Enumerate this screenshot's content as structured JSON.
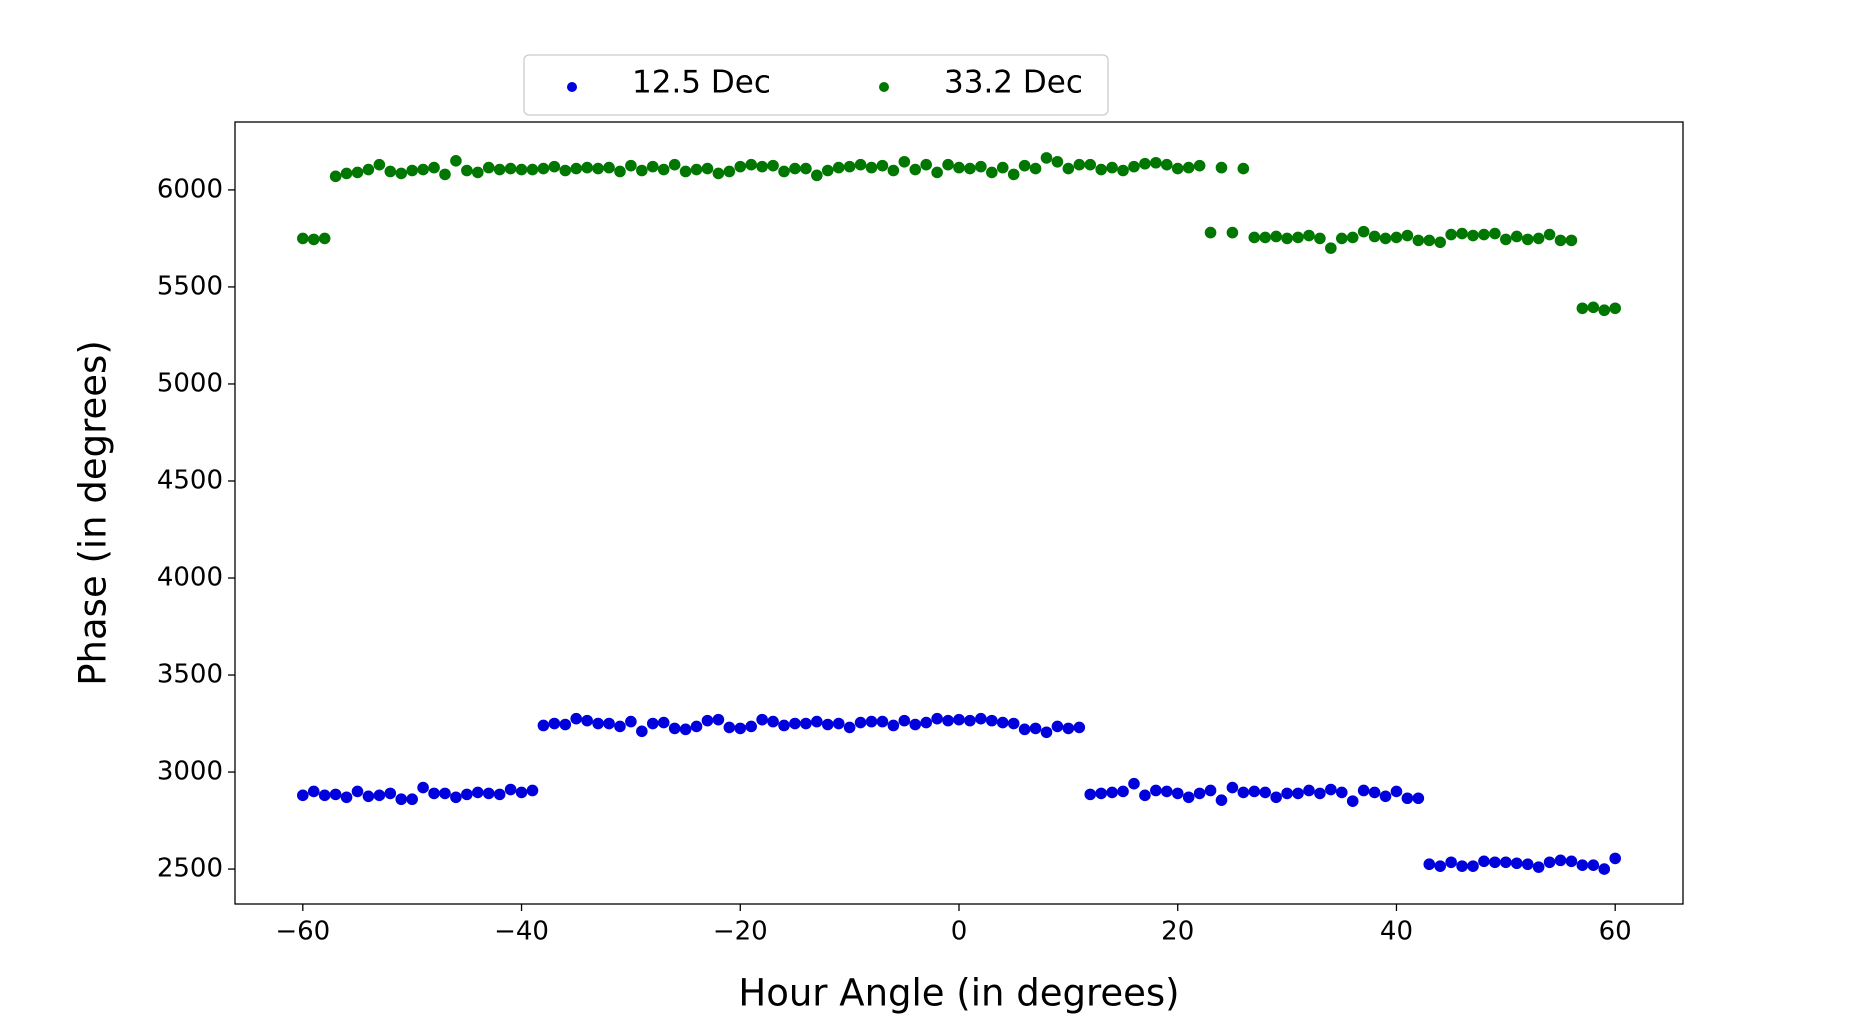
{
  "chart_data": {
    "type": "scatter",
    "x_label": "Hour Angle (in degrees)",
    "y_label": "Phase (in degrees)",
    "x": [
      -60,
      -59,
      -58,
      -57,
      -56,
      -55,
      -54,
      -53,
      -52,
      -51,
      -50,
      -49,
      -48,
      -47,
      -46,
      -45,
      -44,
      -43,
      -42,
      -41,
      -40,
      -39,
      -38,
      -37,
      -36,
      -35,
      -34,
      -33,
      -32,
      -31,
      -30,
      -29,
      -28,
      -27,
      -26,
      -25,
      -24,
      -23,
      -22,
      -21,
      -20,
      -19,
      -18,
      -17,
      -16,
      -15,
      -14,
      -13,
      -12,
      -11,
      -10,
      -9,
      -8,
      -7,
      -6,
      -5,
      -4,
      -3,
      -2,
      -1,
      0,
      1,
      2,
      3,
      4,
      5,
      6,
      7,
      8,
      9,
      10,
      11,
      12,
      13,
      14,
      15,
      16,
      17,
      18,
      19,
      20,
      21,
      22,
      23,
      24,
      25,
      26,
      27,
      28,
      29,
      30,
      31,
      32,
      33,
      34,
      35,
      36,
      37,
      38,
      39,
      40,
      41,
      42,
      43,
      44,
      45,
      46,
      47,
      48,
      49,
      50,
      51,
      52,
      53,
      54,
      55,
      56,
      57,
      58,
      59,
      60
    ],
    "series": [
      {
        "name": "12.5 Dec",
        "color": "#0000dd",
        "values": [
          2880,
          2900,
          2880,
          2885,
          2870,
          2900,
          2875,
          2880,
          2890,
          2860,
          2860,
          2920,
          2890,
          2890,
          2870,
          2885,
          2895,
          2890,
          2885,
          2910,
          2895,
          2905,
          3240,
          3250,
          3245,
          3275,
          3265,
          3250,
          3250,
          3235,
          3260,
          3210,
          3250,
          3255,
          3225,
          3220,
          3235,
          3265,
          3270,
          3230,
          3225,
          3235,
          3270,
          3260,
          3240,
          3250,
          3250,
          3260,
          3245,
          3250,
          3230,
          3255,
          3260,
          3260,
          3240,
          3265,
          3245,
          3255,
          3275,
          3265,
          3270,
          3265,
          3275,
          3265,
          3255,
          3250,
          3220,
          3225,
          3205,
          3235,
          3225,
          3230,
          2885,
          2890,
          2895,
          2900,
          2940,
          2880,
          2905,
          2900,
          2890,
          2870,
          2890,
          2905,
          2855,
          2920,
          2895,
          2900,
          2895,
          2870,
          2890,
          2890,
          2905,
          2890,
          2910,
          2895,
          2850,
          2905,
          2895,
          2875,
          2900,
          2865,
          2865,
          2525,
          2515,
          2535,
          2515,
          2515,
          2540,
          2535,
          2535,
          2530,
          2525,
          2510,
          2535,
          2545,
          2540,
          2520,
          2520,
          2500,
          2555
        ]
      },
      {
        "name": "33.2 Dec",
        "color": "#007700",
        "values": [
          5750,
          5745,
          5750,
          6070,
          6085,
          6090,
          6105,
          6130,
          6095,
          6085,
          6100,
          6105,
          6115,
          6080,
          6150,
          6100,
          6090,
          6115,
          6105,
          6110,
          6105,
          6105,
          6110,
          6120,
          6100,
          6110,
          6115,
          6110,
          6115,
          6095,
          6125,
          6100,
          6120,
          6105,
          6130,
          6095,
          6105,
          6110,
          6085,
          6095,
          6120,
          6130,
          6120,
          6125,
          6095,
          6110,
          6110,
          6075,
          6100,
          6115,
          6120,
          6130,
          6115,
          6125,
          6100,
          6145,
          6105,
          6130,
          6090,
          6130,
          6115,
          6110,
          6120,
          6090,
          6115,
          6080,
          6125,
          6110,
          6165,
          6145,
          6110,
          6130,
          6130,
          6105,
          6115,
          6100,
          6120,
          6135,
          6140,
          6130,
          6110,
          6115,
          6125,
          5780,
          6115,
          5780,
          6110,
          5755,
          5755,
          5760,
          5750,
          5755,
          5765,
          5750,
          5700,
          5750,
          5755,
          5785,
          5760,
          5750,
          5755,
          5765,
          5740,
          5740,
          5730,
          5770,
          5775,
          5765,
          5770,
          5775,
          5745,
          5760,
          5745,
          5750,
          5770,
          5740,
          5740,
          5390,
          5395,
          5380,
          5390
        ]
      }
    ],
    "xlim": [
      -66.2,
      66.2
    ],
    "ylim": [
      2320,
      6350
    ],
    "xticks": [
      {
        "value": -60,
        "label": "−60"
      },
      {
        "value": -40,
        "label": "−40"
      },
      {
        "value": -20,
        "label": "−20"
      },
      0,
      20,
      40,
      60
    ],
    "yticks": [
      2500,
      3000,
      3500,
      4000,
      4500,
      5000,
      5500,
      6000
    ],
    "grid": false,
    "legend": "top"
  }
}
